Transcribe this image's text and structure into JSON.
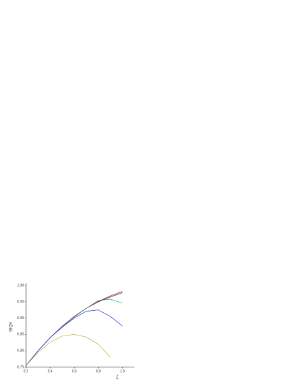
{
  "chart_data": {
    "type": "line",
    "x_label": "ζ",
    "y_label": "BIQV",
    "x": [
      0.2,
      0.3,
      0.4,
      0.5,
      0.6,
      0.7,
      0.8,
      0.9,
      1.0
    ],
    "series": [
      {
        "color": "#000000",
        "values": [
          0.755,
          0.8,
          0.84,
          0.875,
          0.905,
          0.93,
          0.95,
          0.965,
          0.978
        ]
      },
      {
        "color": "#c0003c",
        "values": [
          0.755,
          0.8,
          0.84,
          0.875,
          0.905,
          0.93,
          0.951,
          0.968,
          0.982
        ]
      },
      {
        "color": "#22aa88",
        "values": [
          0.755,
          0.8,
          0.84,
          0.874,
          0.903,
          0.93,
          0.954,
          0.958,
          0.946
        ]
      },
      {
        "color": "#2222ee",
        "values": [
          0.755,
          0.8,
          0.84,
          0.872,
          0.9,
          0.921,
          0.925,
          0.905,
          0.876
        ]
      },
      {
        "color": "#b8b030",
        "values": [
          0.755,
          0.795,
          0.826,
          0.845,
          0.85,
          0.842,
          0.82,
          0.78,
          null
        ]
      }
    ],
    "xlim": [
      0.2,
      1.1
    ],
    "ylim": [
      0.75,
      1.0
    ],
    "xticks": [
      {
        "value": 0.2,
        "label": "0.2"
      },
      {
        "value": 0.4,
        "label": "0.4"
      },
      {
        "value": 0.6,
        "label": "0.6"
      },
      {
        "value": 0.8,
        "label": "0.8"
      },
      {
        "value": 1.0,
        "label": "1.0"
      }
    ],
    "yticks": [
      {
        "value": 0.75,
        "label": "0.75"
      },
      {
        "value": 0.8,
        "label": "0.80"
      },
      {
        "value": 0.85,
        "label": "0.85"
      },
      {
        "value": 0.9,
        "label": "0.90"
      },
      {
        "value": 0.95,
        "label": "0.95"
      },
      {
        "value": 1.0,
        "label": "1.00"
      }
    ]
  }
}
